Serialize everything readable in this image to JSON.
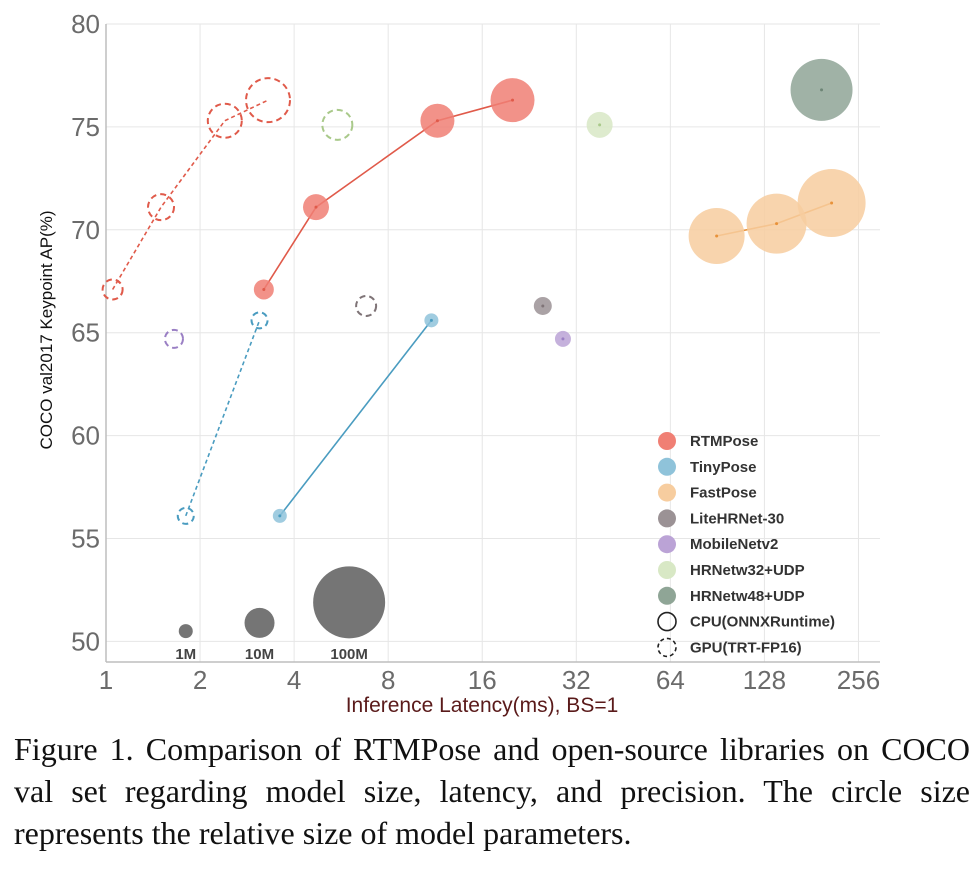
{
  "chart_data": {
    "type": "scatter",
    "xlabel": "Inference Latency(ms), BS=1",
    "ylabel": "COCO val2017 Keypoint AP(%)",
    "x_scale": "log2",
    "xlim": [
      1,
      300
    ],
    "ylim": [
      49,
      80
    ],
    "x_ticks": [
      1,
      2,
      4,
      8,
      16,
      32,
      64,
      128,
      256
    ],
    "y_ticks": [
      50,
      55,
      60,
      65,
      70,
      75,
      80
    ],
    "grid": true,
    "legend_placement": "bottom-right",
    "series": [
      {
        "name": "RTMPose",
        "color": "#f07f74",
        "line": "#e05a4a",
        "device": "CPU(ONNXRuntime)",
        "points": [
          {
            "x": 3.2,
            "y": 67.1,
            "r": 10
          },
          {
            "x": 4.7,
            "y": 71.1,
            "r": 13
          },
          {
            "x": 11.5,
            "y": 75.3,
            "r": 17
          },
          {
            "x": 20,
            "y": 76.3,
            "r": 22
          }
        ]
      },
      {
        "name": "RTMPose",
        "color": "#f07f74",
        "line": "#e05a4a",
        "device": "GPU(TRT-FP16)",
        "points": [
          {
            "x": 1.05,
            "y": 67.1,
            "r": 10
          },
          {
            "x": 1.5,
            "y": 71.1,
            "r": 13
          },
          {
            "x": 2.4,
            "y": 75.3,
            "r": 17
          },
          {
            "x": 3.3,
            "y": 76.3,
            "r": 22
          }
        ]
      },
      {
        "name": "TinyPose",
        "color": "#8fc3da",
        "line": "#4a9cc0",
        "device": "CPU(ONNXRuntime)",
        "points": [
          {
            "x": 3.6,
            "y": 56.1,
            "r": 7
          },
          {
            "x": 11,
            "y": 65.6,
            "r": 7
          }
        ]
      },
      {
        "name": "TinyPose",
        "color": "#8fc3da",
        "line": "#4a9cc0",
        "device": "GPU(TRT-FP16)",
        "points": [
          {
            "x": 1.8,
            "y": 56.1,
            "r": 8
          },
          {
            "x": 3.1,
            "y": 65.6,
            "r": 8
          }
        ]
      },
      {
        "name": "FastPose",
        "color": "#f7cd9f",
        "line": "#e8923a",
        "device": "CPU(ONNXRuntime)",
        "points": [
          {
            "x": 90,
            "y": 69.7,
            "r": 28
          },
          {
            "x": 140,
            "y": 70.3,
            "r": 30
          },
          {
            "x": 210,
            "y": 71.3,
            "r": 34
          }
        ]
      },
      {
        "name": "LiteHRNet-30",
        "color": "#9b9295",
        "line": "#7f7477",
        "device": "CPU(ONNXRuntime)",
        "points": [
          {
            "x": 25,
            "y": 66.3,
            "r": 9
          }
        ]
      },
      {
        "name": "LiteHRNet-30",
        "color": "#9b9295",
        "line": "#7f7477",
        "device": "GPU(TRT-FP16)",
        "points": [
          {
            "x": 6.8,
            "y": 66.3,
            "r": 10
          }
        ]
      },
      {
        "name": "MobileNetv2",
        "color": "#bba3d6",
        "line": "#9a7fc4",
        "device": "CPU(ONNXRuntime)",
        "points": [
          {
            "x": 29,
            "y": 64.7,
            "r": 8
          }
        ]
      },
      {
        "name": "MobileNetv2",
        "color": "#bba3d6",
        "line": "#9a7fc4",
        "device": "GPU(TRT-FP16)",
        "points": [
          {
            "x": 1.65,
            "y": 64.7,
            "r": 9
          }
        ]
      },
      {
        "name": "HRNetw32+UDP",
        "color": "#d8e8c5",
        "line": "#a9c98a",
        "device": "CPU(ONNXRuntime)",
        "points": [
          {
            "x": 38,
            "y": 75.1,
            "r": 13
          }
        ]
      },
      {
        "name": "HRNetw32+UDP",
        "color": "#d8e8c5",
        "line": "#a9c98a",
        "device": "GPU(TRT-FP16)",
        "points": [
          {
            "x": 5.5,
            "y": 75.1,
            "r": 15
          }
        ]
      },
      {
        "name": "HRNetw48+UDP",
        "color": "#8fa596",
        "line": "#6d8576",
        "device": "CPU(ONNXRuntime)",
        "points": [
          {
            "x": 195,
            "y": 76.8,
            "r": 31
          }
        ]
      }
    ],
    "size_reference": [
      {
        "label": "1M",
        "x": 1.8,
        "y": 50.5,
        "r": 7
      },
      {
        "label": "10M",
        "x": 3.1,
        "y": 50.9,
        "r": 15
      },
      {
        "label": "100M",
        "x": 6.0,
        "y": 51.9,
        "r": 36
      }
    ],
    "size_reference_color": "#6e6e6e",
    "legend": [
      {
        "label": "RTMPose",
        "kind": "fill",
        "color": "#f07f74"
      },
      {
        "label": "TinyPose",
        "kind": "fill",
        "color": "#8fc3da"
      },
      {
        "label": "FastPose",
        "kind": "fill",
        "color": "#f7cd9f"
      },
      {
        "label": "LiteHRNet-30",
        "kind": "fill",
        "color": "#9b9295"
      },
      {
        "label": "MobileNetv2",
        "kind": "fill",
        "color": "#bba3d6"
      },
      {
        "label": "HRNetw32+UDP",
        "kind": "fill",
        "color": "#d8e8c5"
      },
      {
        "label": "HRNetw48+UDP",
        "kind": "fill",
        "color": "#8fa596"
      },
      {
        "label": "CPU(ONNXRuntime)",
        "kind": "solid-outline",
        "color": "#222222"
      },
      {
        "label": "GPU(TRT-FP16)",
        "kind": "dashed-outline",
        "color": "#222222"
      }
    ]
  },
  "caption": "Figure 1. Comparison of RTMPose and open-source libraries on COCO val set regarding model size, latency, and precision. The circle size represents the relative size of model parameters."
}
